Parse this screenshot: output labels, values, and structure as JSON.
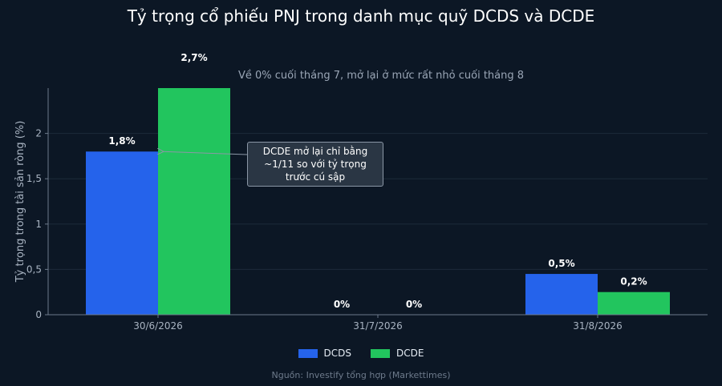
{
  "chart_data": {
    "type": "bar",
    "title": "Tỷ trọng cổ phiếu PNJ trong danh mục quỹ DCDS và DCDE",
    "subtitle": "Về 0% cuối tháng 7, mở lại ở mức rất nhỏ cuối tháng 8",
    "ylabel": "Tỷ trọng trong tài sản ròng (%)",
    "xlabel": "",
    "categories": [
      "30/6/2026",
      "31/7/2026",
      "31/8/2026"
    ],
    "series": [
      {
        "name": "DCDS",
        "color": "#2563eb",
        "values": [
          1.8,
          0,
          0.45
        ],
        "labels": [
          "1,8%",
          "0%",
          "0,5%"
        ]
      },
      {
        "name": "DCDE",
        "color": "#22c55e",
        "values": [
          2.7,
          0,
          0.25
        ],
        "labels": [
          "2,7%",
          "0%",
          "0,2%"
        ]
      }
    ],
    "ylim": [
      0,
      2.5
    ],
    "yticks": [
      0,
      0.5,
      1,
      1.5,
      2
    ],
    "ytick_labels": [
      "0",
      "0,5",
      "1",
      "1,5",
      "2"
    ],
    "grid": true,
    "legend": "bottom-center",
    "annotation": "DCDE mở lại chỉ bằng ~1/11 so với tỷ trọng trước cú sập",
    "source": "Nguồn: Investify tổng hợp (Markettimes)"
  }
}
